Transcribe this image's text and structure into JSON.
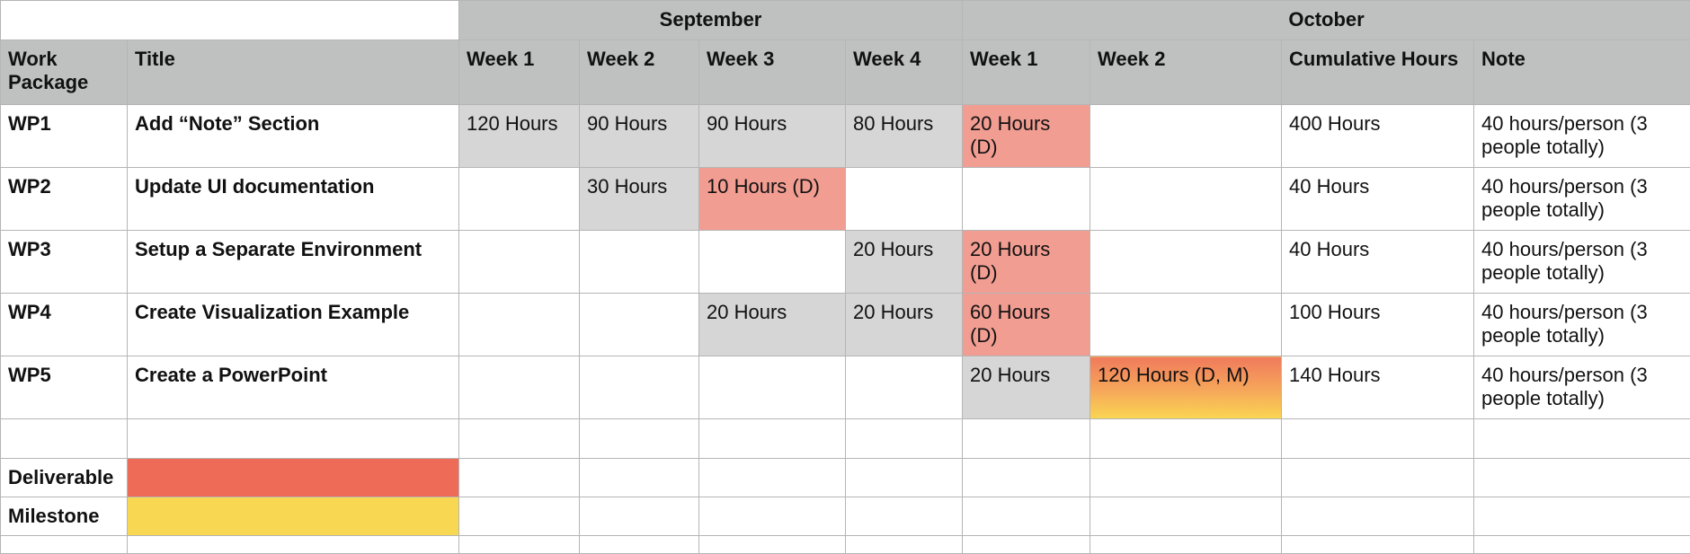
{
  "months": [
    "September",
    "October"
  ],
  "columns": [
    "Work Package",
    "Title",
    "Week 1",
    "Week 2",
    "Week 3",
    "Week 4",
    "Week 1",
    "Week 2",
    "Cumulative Hours",
    "Note"
  ],
  "rows": [
    {
      "wp": "WP1",
      "title": "Add “Note” Section",
      "weeks": [
        "120 Hours",
        "90 Hours",
        "90 Hours",
        "80 Hours",
        "20 Hours (D)",
        ""
      ],
      "cumulative": "400 Hours",
      "note": "40 hours/person (3 people totally)"
    },
    {
      "wp": "WP2",
      "title": "Update UI documentation",
      "weeks": [
        "",
        "30 Hours",
        "10 Hours (D)",
        "",
        "",
        ""
      ],
      "cumulative": "40 Hours",
      "note": "40 hours/person (3 people totally)"
    },
    {
      "wp": "WP3",
      "title": "Setup a Separate Environment",
      "weeks": [
        "",
        "",
        "",
        "20 Hours",
        "20 Hours (D)",
        ""
      ],
      "cumulative": "40 Hours",
      "note": "40 hours/person (3 people totally)"
    },
    {
      "wp": "WP4",
      "title": "Create Visualization Example",
      "weeks": [
        "",
        "",
        "20 Hours",
        "20 Hours",
        "60 Hours (D)",
        ""
      ],
      "cumulative": "100 Hours",
      "note": "40 hours/person (3 people totally)"
    },
    {
      "wp": "WP5",
      "title": "Create a PowerPoint",
      "weeks": [
        "",
        "",
        "",
        "",
        "20 Hours",
        "120 Hours (D, M)"
      ],
      "cumulative": "140 Hours",
      "note": "40 hours/person (3 people totally)"
    }
  ],
  "legend": {
    "deliverable": "Deliverable",
    "milestone": "Milestone"
  },
  "colors": {
    "header": "#bfc1c1",
    "scheduled": "#d6d6d6",
    "deliverable_week": "#f29d92",
    "deliverable": "#ee6b57",
    "milestone": "#f8d852"
  }
}
